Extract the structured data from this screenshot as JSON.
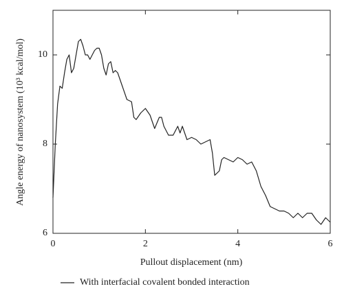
{
  "chart_data": {
    "type": "line",
    "x_label": "Pullout displacement (nm)",
    "y_label": "Angle energy of nanosystem (10³ kcal/mol)",
    "x": [
      0,
      0.05,
      0.1,
      0.15,
      0.2,
      0.25,
      0.3,
      0.35,
      0.4,
      0.45,
      0.5,
      0.55,
      0.6,
      0.65,
      0.7,
      0.75,
      0.8,
      0.85,
      0.9,
      0.95,
      1.0,
      1.05,
      1.1,
      1.15,
      1.2,
      1.25,
      1.3,
      1.35,
      1.4,
      1.5,
      1.6,
      1.7,
      1.75,
      1.8,
      1.9,
      2.0,
      2.1,
      2.2,
      2.3,
      2.35,
      2.4,
      2.5,
      2.6,
      2.7,
      2.75,
      2.8,
      2.9,
      3.0,
      3.1,
      3.2,
      3.3,
      3.4,
      3.45,
      3.5,
      3.6,
      3.65,
      3.7,
      3.8,
      3.9,
      4.0,
      4.1,
      4.2,
      4.3,
      4.4,
      4.5,
      4.6,
      4.7,
      4.8,
      4.9,
      5.0,
      5.1,
      5.2,
      5.3,
      5.4,
      5.5,
      5.6,
      5.7,
      5.8,
      5.9,
      6.0
    ],
    "series": [
      {
        "name": "With interfacial covalent bonded interaction",
        "color": "#222222",
        "values": [
          6.8,
          8.0,
          8.9,
          9.3,
          9.25,
          9.6,
          9.9,
          10.0,
          9.6,
          9.7,
          10.0,
          10.3,
          10.35,
          10.2,
          10.0,
          10.0,
          9.9,
          10.0,
          10.1,
          10.15,
          10.15,
          10.0,
          9.7,
          9.55,
          9.8,
          9.85,
          9.6,
          9.65,
          9.6,
          9.3,
          9.0,
          8.95,
          8.6,
          8.55,
          8.7,
          8.8,
          8.65,
          8.35,
          8.6,
          8.6,
          8.4,
          8.2,
          8.2,
          8.4,
          8.25,
          8.4,
          8.1,
          8.15,
          8.1,
          8.0,
          8.05,
          8.1,
          7.8,
          7.3,
          7.4,
          7.65,
          7.7,
          7.65,
          7.6,
          7.7,
          7.65,
          7.55,
          7.6,
          7.4,
          7.05,
          6.85,
          6.6,
          6.55,
          6.5,
          6.5,
          6.45,
          6.35,
          6.45,
          6.35,
          6.45,
          6.45,
          6.3,
          6.2,
          6.35,
          6.25
        ]
      }
    ],
    "xlim": [
      0,
      6
    ],
    "xticks": [
      0,
      2,
      4,
      6
    ],
    "ylim": [
      6,
      11
    ],
    "yticks": [
      6,
      8,
      10
    ],
    "grid": false,
    "legend": "bottom"
  }
}
